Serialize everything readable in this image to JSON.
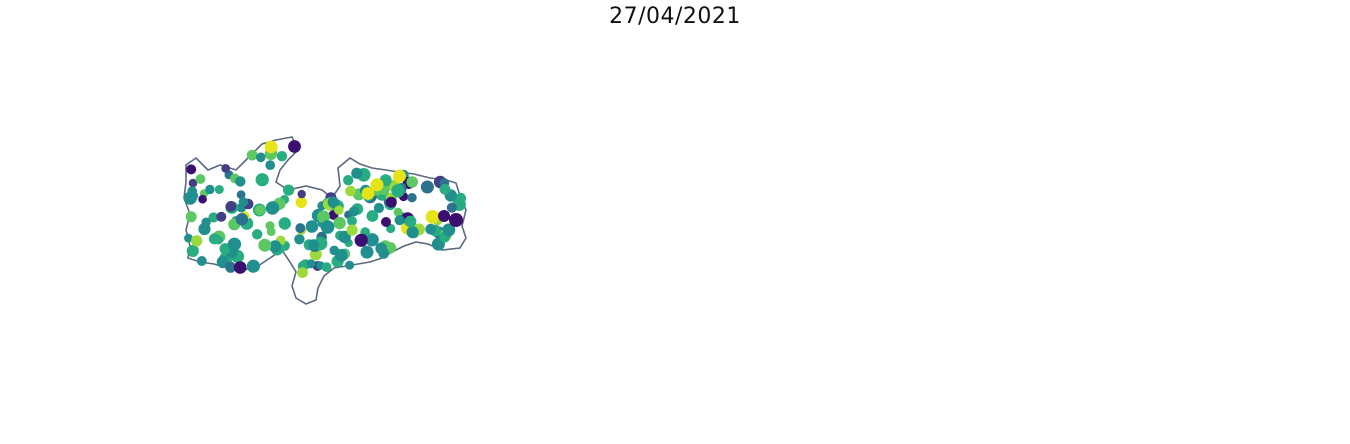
{
  "figure": {
    "title": "27/04/2021"
  },
  "maps": [
    {
      "id": "points",
      "kind": "proportional-points",
      "colormap": "viridis",
      "outline_color": "#5a6a80"
    },
    {
      "id": "choropleth",
      "kind": "choropleth",
      "colormap": "viridis"
    },
    {
      "id": "categories",
      "kind": "categorical-choropleth",
      "palette": [
        "#5b7088",
        "#f8c55c",
        "#f7a12c",
        "#f44b45"
      ]
    }
  ]
}
